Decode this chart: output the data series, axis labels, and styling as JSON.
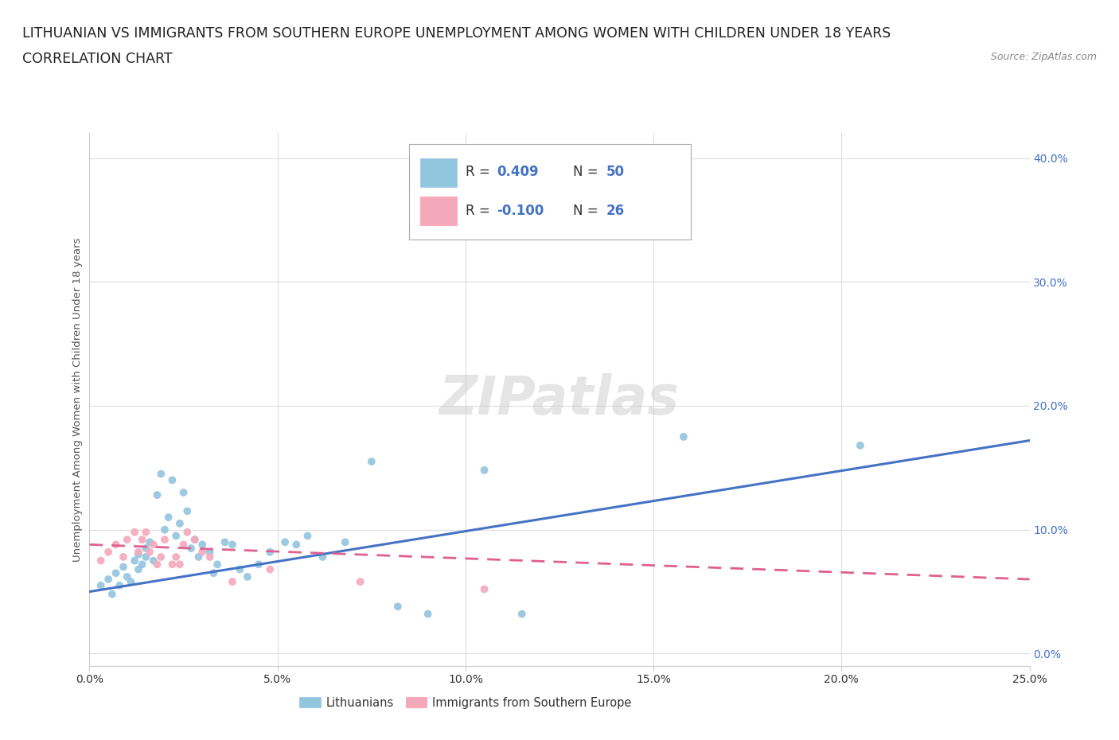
{
  "title_line1": "LITHUANIAN VS IMMIGRANTS FROM SOUTHERN EUROPE UNEMPLOYMENT AMONG WOMEN WITH CHILDREN UNDER 18 YEARS",
  "title_line2": "CORRELATION CHART",
  "source_text": "Source: ZipAtlas.com",
  "xlim": [
    0.0,
    0.25
  ],
  "ylim": [
    -0.01,
    0.42
  ],
  "xlabel_tick_vals": [
    0.0,
    0.05,
    0.1,
    0.15,
    0.2,
    0.25
  ],
  "ylabel_tick_vals": [
    0.0,
    0.1,
    0.2,
    0.3,
    0.4
  ],
  "ylabel": "Unemployment Among Women with Children Under 18 years",
  "watermark": "ZIPatlas",
  "blue_color": "#92c5de",
  "pink_color": "#f4a9bb",
  "trend_blue": "#4472c4",
  "trend_pink": "#e06090",
  "tick_color_y": "#4472c4",
  "tick_color_x": "#333333",
  "blue_scatter": [
    [
      0.003,
      0.055
    ],
    [
      0.005,
      0.06
    ],
    [
      0.006,
      0.048
    ],
    [
      0.007,
      0.065
    ],
    [
      0.008,
      0.055
    ],
    [
      0.009,
      0.07
    ],
    [
      0.01,
      0.062
    ],
    [
      0.011,
      0.058
    ],
    [
      0.012,
      0.075
    ],
    [
      0.013,
      0.08
    ],
    [
      0.013,
      0.068
    ],
    [
      0.014,
      0.072
    ],
    [
      0.015,
      0.085
    ],
    [
      0.015,
      0.078
    ],
    [
      0.016,
      0.09
    ],
    [
      0.017,
      0.075
    ],
    [
      0.018,
      0.128
    ],
    [
      0.019,
      0.145
    ],
    [
      0.02,
      0.1
    ],
    [
      0.021,
      0.11
    ],
    [
      0.022,
      0.14
    ],
    [
      0.023,
      0.095
    ],
    [
      0.024,
      0.105
    ],
    [
      0.025,
      0.13
    ],
    [
      0.026,
      0.115
    ],
    [
      0.027,
      0.085
    ],
    [
      0.028,
      0.092
    ],
    [
      0.029,
      0.078
    ],
    [
      0.03,
      0.088
    ],
    [
      0.032,
      0.082
    ],
    [
      0.033,
      0.065
    ],
    [
      0.034,
      0.072
    ],
    [
      0.036,
      0.09
    ],
    [
      0.038,
      0.088
    ],
    [
      0.04,
      0.068
    ],
    [
      0.042,
      0.062
    ],
    [
      0.045,
      0.072
    ],
    [
      0.048,
      0.082
    ],
    [
      0.052,
      0.09
    ],
    [
      0.055,
      0.088
    ],
    [
      0.058,
      0.095
    ],
    [
      0.062,
      0.078
    ],
    [
      0.068,
      0.09
    ],
    [
      0.075,
      0.155
    ],
    [
      0.082,
      0.038
    ],
    [
      0.09,
      0.032
    ],
    [
      0.105,
      0.148
    ],
    [
      0.115,
      0.032
    ],
    [
      0.158,
      0.175
    ],
    [
      0.205,
      0.168
    ]
  ],
  "pink_scatter": [
    [
      0.003,
      0.075
    ],
    [
      0.005,
      0.082
    ],
    [
      0.007,
      0.088
    ],
    [
      0.009,
      0.078
    ],
    [
      0.01,
      0.092
    ],
    [
      0.012,
      0.098
    ],
    [
      0.013,
      0.082
    ],
    [
      0.014,
      0.092
    ],
    [
      0.015,
      0.098
    ],
    [
      0.016,
      0.082
    ],
    [
      0.017,
      0.088
    ],
    [
      0.018,
      0.072
    ],
    [
      0.019,
      0.078
    ],
    [
      0.02,
      0.092
    ],
    [
      0.022,
      0.072
    ],
    [
      0.023,
      0.078
    ],
    [
      0.024,
      0.072
    ],
    [
      0.025,
      0.088
    ],
    [
      0.026,
      0.098
    ],
    [
      0.028,
      0.092
    ],
    [
      0.03,
      0.082
    ],
    [
      0.032,
      0.078
    ],
    [
      0.038,
      0.058
    ],
    [
      0.048,
      0.068
    ],
    [
      0.072,
      0.058
    ],
    [
      0.105,
      0.052
    ]
  ],
  "blue_trend_x": [
    0.0,
    0.25
  ],
  "blue_trend_y": [
    0.05,
    0.172
  ],
  "pink_trend_x": [
    0.0,
    0.25
  ],
  "pink_trend_y": [
    0.088,
    0.06
  ],
  "grid_color": "#dddddd",
  "background_color": "#ffffff",
  "title_fontsize": 12.5,
  "axis_label_fontsize": 9.5,
  "tick_fontsize": 10,
  "legend_label1": "Lithuanians",
  "legend_label2": "Immigrants from Southern Europe"
}
